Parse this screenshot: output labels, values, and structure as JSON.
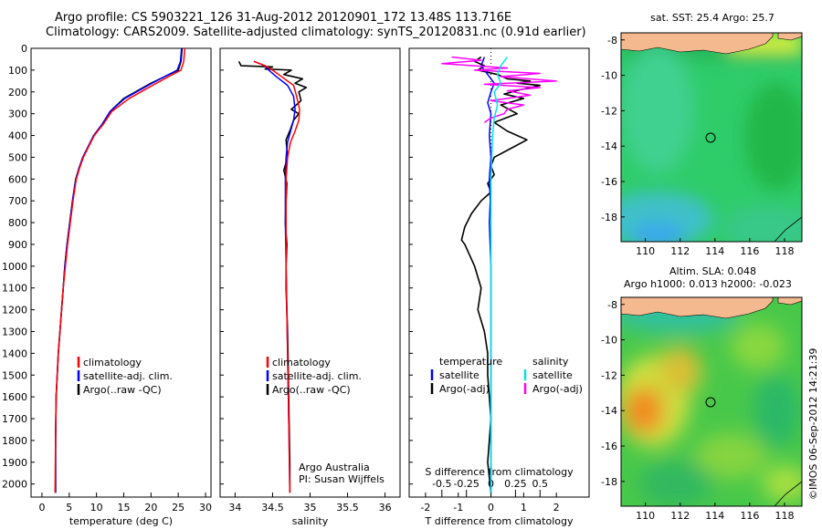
{
  "header": {
    "line1": "Argo profile: CS 5903221_126 31-Aug-2012 20120901_172 13.48S 113.716E",
    "line2": "Climatology: CARS2009. Satellite-adjusted climatology: synTS_20120831.nc (0.91d earlier)"
  },
  "side_text": "©IMOS 06-Sep-2012 14:21:39",
  "chart_data": [
    {
      "type": "line",
      "id": "temperature",
      "xlabel": "temperature (deg C)",
      "xlim": [
        -2,
        31
      ],
      "ylim": [
        0,
        2060
      ],
      "x_ticks": [
        0,
        5,
        10,
        15,
        20,
        25,
        30
      ],
      "y_ticks": [
        0,
        100,
        200,
        300,
        400,
        500,
        600,
        700,
        800,
        900,
        1000,
        1100,
        1200,
        1300,
        1400,
        1500,
        1600,
        1700,
        1800,
        1900,
        2000
      ],
      "legend_position": "lower-center",
      "legend": [
        {
          "label": "climatology",
          "color": "#ff0000"
        },
        {
          "label": "satellite-adj. clim.",
          "color": "#0000ff"
        },
        {
          "label": "Argo(..raw -QC)",
          "color": "#000000"
        }
      ],
      "series": [
        {
          "name": "Argo(..raw -QC)",
          "color": "#000000",
          "x": [
            25.7,
            25.5,
            25.0,
            20.0,
            15.0,
            12.5,
            11.0,
            9.5,
            8.5,
            7.5,
            6.8,
            6.2,
            5.6,
            5.1,
            4.6,
            4.2,
            3.9,
            3.6,
            3.3,
            3.0,
            2.8,
            2.6,
            2.5,
            2.5
          ],
          "y": [
            0,
            60,
            100,
            160,
            230,
            290,
            350,
            400,
            450,
            500,
            550,
            600,
            700,
            800,
            900,
            1000,
            1100,
            1200,
            1300,
            1400,
            1500,
            1600,
            1800,
            2040
          ]
        },
        {
          "name": "satellite-adj. clim.",
          "color": "#0000ff",
          "x": [
            25.6,
            25.4,
            24.8,
            20.2,
            15.2,
            12.5,
            11.0,
            9.5,
            8.5,
            7.5,
            6.8,
            6.2,
            5.6,
            5.1,
            4.6,
            4.2,
            3.9,
            3.6,
            3.3,
            3.0,
            2.8,
            2.6,
            2.5,
            2.5
          ],
          "y": [
            0,
            60,
            100,
            160,
            230,
            290,
            350,
            400,
            450,
            500,
            550,
            600,
            700,
            800,
            900,
            1000,
            1100,
            1200,
            1300,
            1400,
            1500,
            1600,
            1800,
            2040
          ]
        },
        {
          "name": "climatology",
          "color": "#ff0000",
          "x": [
            26.2,
            26.0,
            25.5,
            21.0,
            16.0,
            12.8,
            11.2,
            9.6,
            8.6,
            7.6,
            6.9,
            6.3,
            5.7,
            5.2,
            4.7,
            4.3,
            3.9,
            3.6,
            3.3,
            3.0,
            2.8,
            2.6,
            2.5,
            2.4
          ],
          "y": [
            0,
            60,
            100,
            160,
            230,
            290,
            350,
            400,
            450,
            500,
            550,
            600,
            700,
            800,
            900,
            1000,
            1100,
            1200,
            1300,
            1400,
            1500,
            1600,
            1800,
            2040
          ]
        }
      ]
    },
    {
      "type": "line",
      "id": "salinity",
      "xlabel": "salinity",
      "xlim": [
        33.8,
        36.2
      ],
      "ylim": [
        0,
        2060
      ],
      "x_ticks": [
        34,
        34.5,
        35,
        35.5,
        36
      ],
      "x_tick_labels": [
        "34",
        "34.5",
        "35",
        "35.5",
        "36"
      ],
      "legend_position": "lower-center",
      "legend": [
        {
          "label": "climatology",
          "color": "#ff0000"
        },
        {
          "label": "satellite-adj. clim.",
          "color": "#0000ff"
        },
        {
          "label": "Argo(..raw -QC)",
          "color": "#000000"
        }
      ],
      "annotation": [
        "Argo Australia",
        "PI: Susan Wijffels"
      ],
      "series": [
        {
          "name": "Argo(..raw -QC)",
          "color": "#000000",
          "x": [
            34.05,
            34.08,
            34.5,
            34.4,
            34.75,
            34.65,
            34.9,
            34.8,
            34.95,
            34.85,
            34.88,
            34.75,
            34.85,
            34.78,
            34.74,
            34.68,
            34.7,
            34.65,
            34.69,
            34.68,
            34.67,
            34.69,
            34.68,
            34.68,
            34.69,
            34.7,
            34.71,
            34.72,
            34.73,
            34.73
          ],
          "y": [
            60,
            80,
            85,
            95,
            100,
            120,
            140,
            160,
            180,
            200,
            240,
            280,
            300,
            330,
            370,
            420,
            500,
            560,
            620,
            700,
            800,
            900,
            1000,
            1100,
            1200,
            1300,
            1500,
            1700,
            1900,
            2040
          ]
        },
        {
          "name": "satellite-adj. clim.",
          "color": "#0000ff",
          "x": [
            34.25,
            34.4,
            34.45,
            34.55,
            34.7,
            34.78,
            34.8,
            34.78,
            34.74,
            34.7,
            34.68,
            34.67,
            34.67,
            34.68,
            34.69,
            34.7,
            34.71,
            34.72,
            34.73
          ],
          "y": [
            60,
            80,
            100,
            130,
            170,
            220,
            280,
            330,
            380,
            430,
            500,
            600,
            800,
            1000,
            1200,
            1400,
            1600,
            1800,
            2040
          ]
        },
        {
          "name": "climatology",
          "color": "#ff0000",
          "x": [
            34.25,
            34.4,
            34.5,
            34.62,
            34.78,
            34.82,
            34.86,
            34.85,
            34.8,
            34.74,
            34.7,
            34.68,
            34.68,
            34.68,
            34.69,
            34.7,
            34.71,
            34.72,
            34.73
          ],
          "y": [
            60,
            80,
            100,
            130,
            170,
            220,
            280,
            330,
            380,
            430,
            500,
            600,
            800,
            1000,
            1200,
            1400,
            1600,
            1800,
            2040
          ]
        }
      ]
    },
    {
      "type": "line",
      "id": "differences",
      "xlabel": "T difference from climatology",
      "top_label": "S difference from climatology",
      "xlim": [
        -2.5,
        3.0
      ],
      "ylim": [
        0,
        2060
      ],
      "x_ticks": [
        -2,
        -1,
        0,
        1,
        2
      ],
      "top_ticks": [
        -0.5,
        -0.25,
        0,
        0.25,
        0.5
      ],
      "top_tick_labels": [
        "-0.5",
        "-0.25",
        "0",
        "0.25",
        "0.5"
      ],
      "legend_position": "lower-center",
      "legend_groups": [
        {
          "title": "temperature",
          "items": [
            {
              "label": "satellite",
              "color": "#0000ff"
            },
            {
              "label": "Argo(-adj)",
              "color": "#000000"
            }
          ]
        },
        {
          "title": "salinity",
          "items": [
            {
              "label": "satellite",
              "color": "#00e5e5"
            },
            {
              "label": "Argo(-adj)",
              "color": "#ff00ff"
            }
          ]
        }
      ],
      "series": [
        {
          "name": "temperature Argo(-adj)",
          "color": "#000000",
          "x": [
            -0.3,
            -0.5,
            -0.2,
            -0.4,
            0.2,
            0.5,
            1.2,
            0.8,
            1.5,
            0.9,
            0.4,
            1.0,
            0.3,
            0.8,
            0.1,
            0.5,
            1.1,
            0.6,
            0.1,
            0.0,
            0.1,
            -0.1,
            0.0,
            -0.3,
            -0.6,
            -0.8,
            -0.9,
            -0.8,
            -0.5,
            -0.3,
            -0.4,
            -0.2,
            -0.1,
            -0.1,
            0.0,
            -0.1,
            0.0
          ],
          "y": [
            40,
            60,
            80,
            100,
            120,
            140,
            150,
            160,
            170,
            190,
            210,
            230,
            260,
            300,
            340,
            380,
            420,
            460,
            500,
            540,
            580,
            620,
            660,
            700,
            760,
            820,
            880,
            900,
            1000,
            1100,
            1200,
            1300,
            1400,
            1500,
            1700,
            1900,
            2040
          ]
        },
        {
          "name": "temperature satellite",
          "color": "#0000ff",
          "x": [
            -0.2,
            -0.3,
            -0.1,
            0.1,
            0.0,
            -0.1,
            0.0,
            -0.05,
            0.0,
            -0.05,
            -0.02,
            -0.05,
            0.0,
            0.0,
            0.0
          ],
          "y": [
            40,
            80,
            120,
            160,
            200,
            250,
            300,
            400,
            500,
            600,
            700,
            800,
            1000,
            1500,
            2040
          ]
        },
        {
          "name": "salinity Argo(-adj)",
          "color": "#ff00ff",
          "x": [
            -1.2,
            -0.3,
            -1.5,
            0.5,
            -0.5,
            1.5,
            0.3,
            2.0,
            -0.2,
            1.5,
            0.5,
            1.2,
            0.0,
            1.0,
            0.5,
            0.4,
            0.0,
            -0.2
          ],
          "y": [
            40,
            55,
            70,
            90,
            100,
            115,
            130,
            150,
            165,
            180,
            195,
            215,
            240,
            260,
            280,
            300,
            320,
            340
          ]
        },
        {
          "name": "salinity satellite",
          "color": "#00e5e5",
          "x": [
            0.5,
            0.3,
            0.2,
            0.3,
            0.1,
            0.2,
            0.1,
            0.05,
            0.0,
            0.0,
            0.0
          ],
          "y": [
            40,
            80,
            120,
            160,
            200,
            260,
            320,
            400,
            600,
            1000,
            2040
          ]
        }
      ]
    }
  ],
  "maps": [
    {
      "title": "sat. SST: 25.4  Argo: 25.7",
      "lon_ticks": [
        110,
        112,
        114,
        116,
        118
      ],
      "lat_ticks": [
        -8,
        -10,
        -12,
        -14,
        -16,
        -18
      ],
      "lon_range": [
        108.6,
        119.0
      ],
      "lat_range": [
        -19.4,
        -7.6
      ],
      "marker": {
        "lon": 113.716,
        "lat": -13.48
      }
    },
    {
      "title_lines": [
        "Altim. SLA: 0.048",
        "Argo h1000: 0.013 h2000: -0.023"
      ],
      "lon_ticks": [
        110,
        112,
        114,
        116,
        118
      ],
      "lat_ticks": [
        -8,
        -10,
        -12,
        -14,
        -16,
        -18
      ],
      "lon_range": [
        108.6,
        119.0
      ],
      "lat_range": [
        -19.4,
        -7.6
      ],
      "marker": {
        "lon": 113.716,
        "lat": -13.48
      }
    }
  ],
  "colors": {
    "land": "#f5b98f",
    "sea_green": "#36c460",
    "warm": "#f07820",
    "cool": "#40b8e8"
  }
}
